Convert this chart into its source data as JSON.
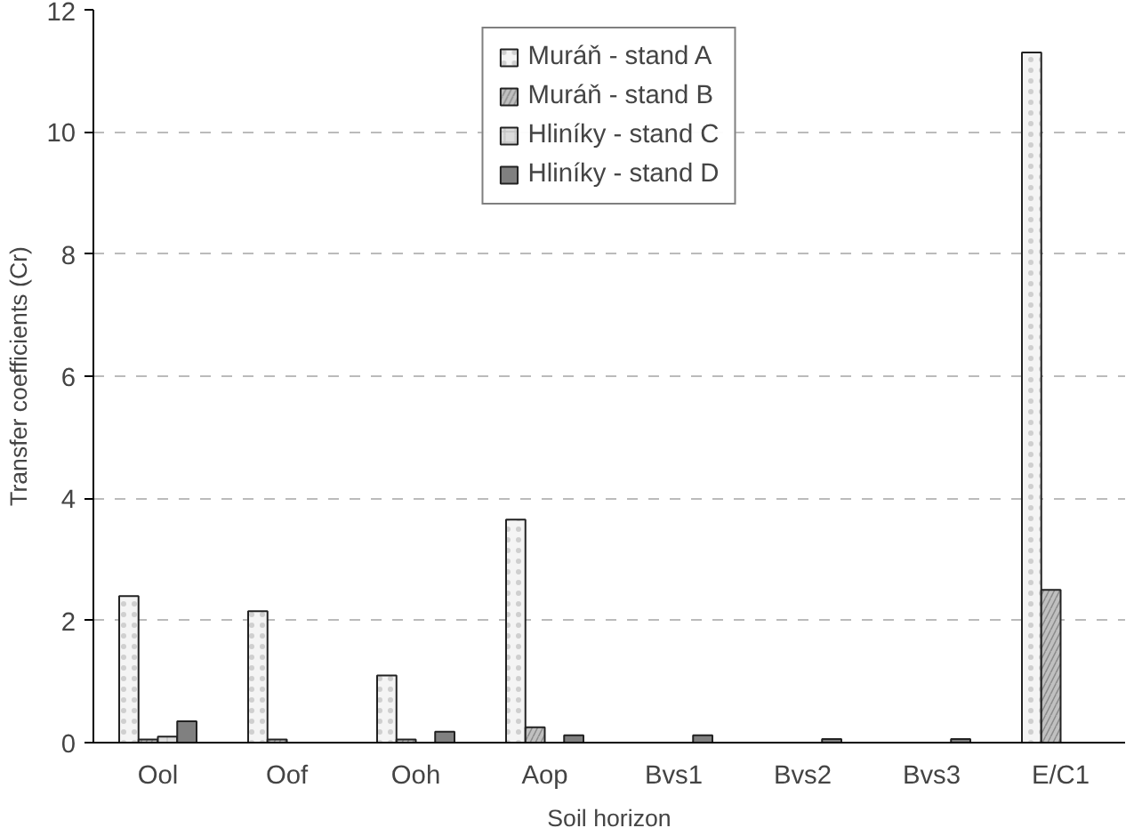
{
  "chart_data": {
    "type": "bar",
    "xlabel": "Soil horizon",
    "ylabel": "Transfer coefficients (Cr)",
    "categories": [
      "Ool",
      "Oof",
      "Ooh",
      "Aop",
      "Bvs1",
      "Bvs2",
      "Bvs3",
      "E/C1"
    ],
    "series": [
      {
        "name": "Muráň - stand A",
        "color": "#f4f4f4",
        "values": [
          2.4,
          2.15,
          1.1,
          3.65,
          null,
          null,
          null,
          11.3
        ]
      },
      {
        "name": "Muráň - stand B",
        "color": "#c0c0c0",
        "values": [
          0.05,
          0.05,
          0.05,
          0.25,
          null,
          null,
          null,
          2.5
        ]
      },
      {
        "name": "Hliníky - stand C",
        "color": "#dcdcdc",
        "values": [
          0.1,
          null,
          null,
          null,
          null,
          null,
          null,
          null
        ]
      },
      {
        "name": "Hliníky - stand D",
        "color": "#808080",
        "values": [
          0.35,
          null,
          0.18,
          0.12,
          0.12,
          0.06,
          0.06,
          null
        ]
      }
    ],
    "ylim": [
      0,
      12
    ],
    "yticks": [
      0,
      2,
      4,
      6,
      8,
      10,
      12
    ],
    "grid": "y",
    "legend": "top"
  }
}
